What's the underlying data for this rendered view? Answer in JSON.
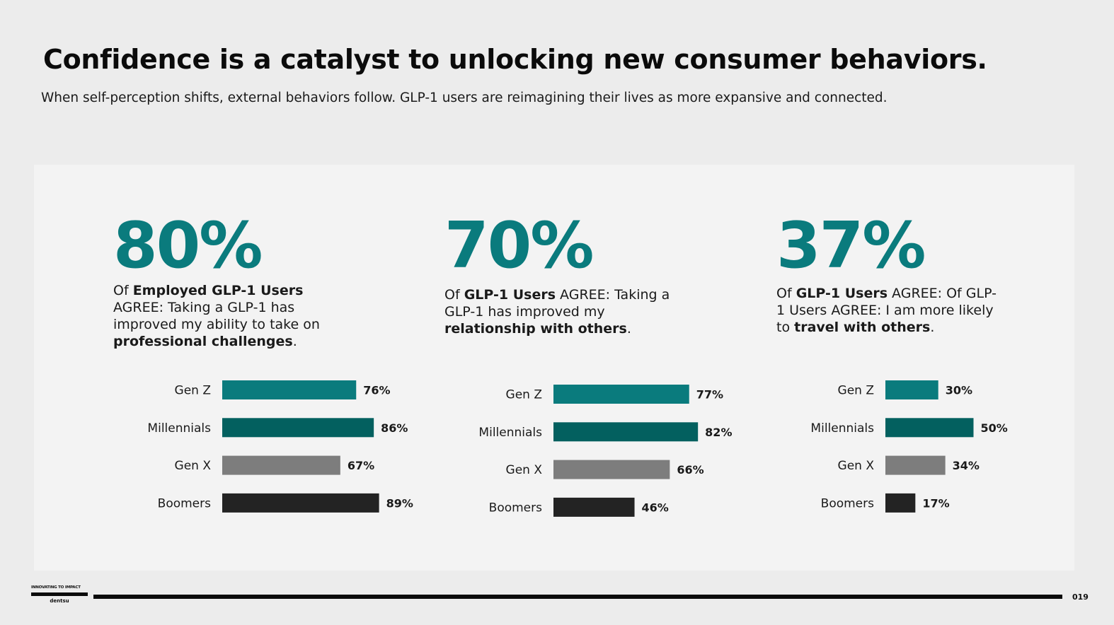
{
  "title": "Confidence is a catalyst to unlocking new consumer behaviors.",
  "subtitle": "When self-perception shifts, external behaviors follow. GLP-1 users are reimagining their lives as more expansive and connected.",
  "stats": [
    {
      "big": "80%",
      "desc_parts": [
        {
          "t": "Of ",
          "b": false
        },
        {
          "t": "Employed GLP-1 Users",
          "b": true
        },
        {
          "t": " AGREE: Taking a GLP-1 has improved my ability to take on ",
          "b": false
        },
        {
          "t": "professional challenges",
          "b": true
        },
        {
          "t": ".",
          "b": false
        }
      ]
    },
    {
      "big": "70%",
      "desc_parts": [
        {
          "t": "Of ",
          "b": false
        },
        {
          "t": "GLP-1 Users",
          "b": true
        },
        {
          "t": " AGREE: Taking a GLP-1 has improved my ",
          "b": false
        },
        {
          "t": "relationship with others",
          "b": true
        },
        {
          "t": ".",
          "b": false
        }
      ]
    },
    {
      "big": "37%",
      "desc_parts": [
        {
          "t": "Of ",
          "b": false
        },
        {
          "t": "GLP-1 Users",
          "b": true
        },
        {
          "t": " AGREE: Of GLP-1 Users AGREE: I am more likely to ",
          "b": false
        },
        {
          "t": "travel with others",
          "b": true
        },
        {
          "t": ".",
          "b": false
        }
      ]
    }
  ],
  "colors": {
    "gen_z": "#0a7b7d",
    "millennials": "#03605f",
    "gen_x": "#7d7d7d",
    "boomers": "#232323",
    "accent": "#0a7b7d"
  },
  "chart_data": [
    {
      "type": "bar",
      "orientation": "horizontal",
      "categories": [
        "Gen Z",
        "Millennials",
        "Gen X",
        "Boomers"
      ],
      "values": [
        76,
        86,
        67,
        89
      ],
      "value_labels": [
        "76%",
        "86%",
        "67%",
        "89%"
      ],
      "xlim": [
        0,
        100
      ]
    },
    {
      "type": "bar",
      "orientation": "horizontal",
      "categories": [
        "Gen Z",
        "Millennials",
        "Gen X",
        "Boomers"
      ],
      "values": [
        77,
        82,
        66,
        46
      ],
      "value_labels": [
        "77%",
        "82%",
        "66%",
        "46%"
      ],
      "xlim": [
        0,
        100
      ]
    },
    {
      "type": "bar",
      "orientation": "horizontal",
      "categories": [
        "Gen Z",
        "Millennials",
        "Gen X",
        "Boomers"
      ],
      "values": [
        30,
        50,
        34,
        17
      ],
      "value_labels": [
        "30%",
        "50%",
        "34%",
        "17%"
      ],
      "xlim": [
        0,
        100
      ]
    }
  ],
  "footer": {
    "logo_tagline": "INNOVATING TO IMPACT",
    "logo_name": "dentsu",
    "page_number": "019"
  }
}
